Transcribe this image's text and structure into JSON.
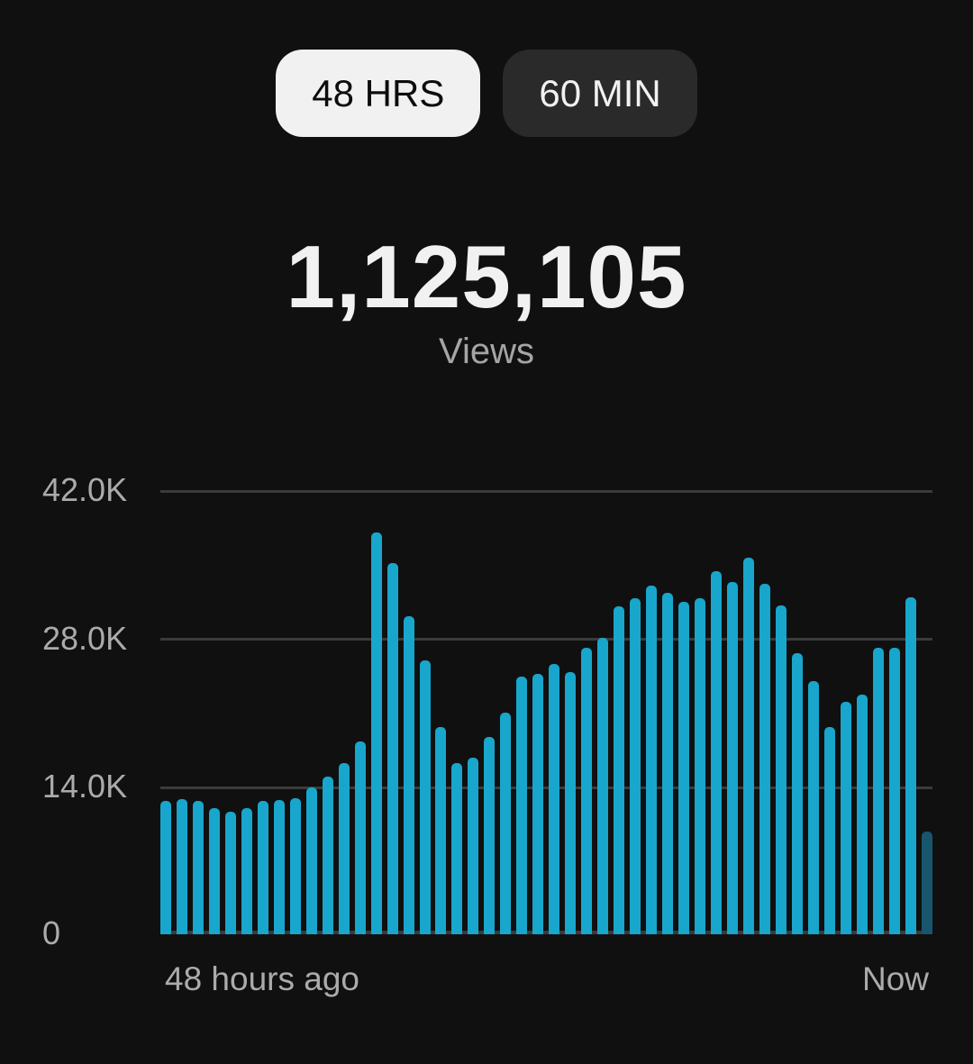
{
  "toggle": {
    "hours_label": "48 HRS",
    "minutes_label": "60 MIN",
    "selected": "48 HRS"
  },
  "metric": {
    "value": "1,125,105",
    "label": "Views"
  },
  "chart_data": {
    "type": "bar",
    "unit": "views per hour",
    "ylim": [
      0,
      42000
    ],
    "y_ticks": [
      "42.0K",
      "28.0K",
      "14.0K",
      "0"
    ],
    "x_label_left": "48 hours ago",
    "x_label_right": "Now",
    "grid": true,
    "bar_color": "#18a6cc",
    "partial_bar_color": "#17566c",
    "gridline_color": "#3b3b3b",
    "values": [
      12600,
      12800,
      12600,
      11900,
      11600,
      11900,
      12600,
      12700,
      12900,
      13900,
      14900,
      16200,
      18200,
      38000,
      35100,
      30100,
      25900,
      19600,
      16200,
      16700,
      18700,
      21000,
      24400,
      24600,
      25600,
      24800,
      27100,
      28000,
      31000,
      31800,
      33000,
      32300,
      31400,
      31800,
      34300,
      33300,
      35600,
      33100,
      31100,
      26600,
      23900,
      19600,
      22000,
      22700,
      27100,
      27100,
      31900,
      9700
    ],
    "partial_bar_index": 47
  },
  "colors": {
    "background": "#101010",
    "metric_text": "#f1f1f1",
    "secondary_text": "#ababab",
    "active_toggle_bg": "#f1f1f1",
    "inactive_toggle_bg": "#2a2a2a"
  }
}
